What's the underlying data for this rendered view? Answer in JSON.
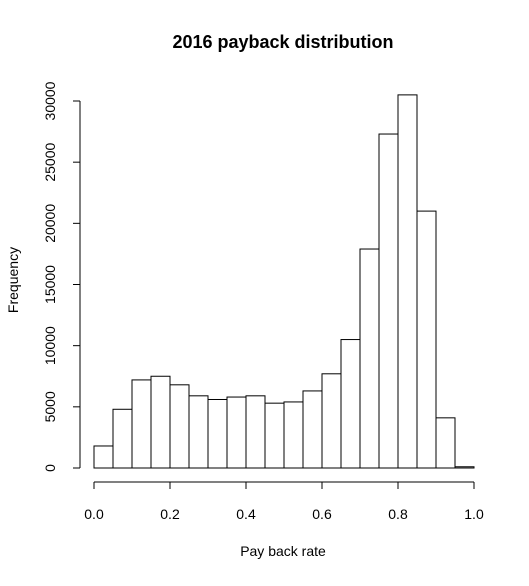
{
  "chart_data": {
    "type": "bar",
    "title": "2016 payback distribution",
    "xlabel": "Pay back rate",
    "ylabel": "Frequency",
    "xlim": [
      0.0,
      1.0
    ],
    "ylim": [
      0,
      30000
    ],
    "x_ticks": [
      "0.0",
      "0.2",
      "0.4",
      "0.6",
      "0.8",
      "1.0"
    ],
    "y_ticks": [
      "0",
      "5000",
      "10000",
      "15000",
      "20000",
      "25000",
      "30000"
    ],
    "bin_width": 0.05,
    "bins": [
      {
        "x0": 0.0,
        "x1": 0.05,
        "value": 1800
      },
      {
        "x0": 0.05,
        "x1": 0.1,
        "value": 4800
      },
      {
        "x0": 0.1,
        "x1": 0.15,
        "value": 7200
      },
      {
        "x0": 0.15,
        "x1": 0.2,
        "value": 7500
      },
      {
        "x0": 0.2,
        "x1": 0.25,
        "value": 6800
      },
      {
        "x0": 0.25,
        "x1": 0.3,
        "value": 5900
      },
      {
        "x0": 0.3,
        "x1": 0.35,
        "value": 5600
      },
      {
        "x0": 0.35,
        "x1": 0.4,
        "value": 5800
      },
      {
        "x0": 0.4,
        "x1": 0.45,
        "value": 5900
      },
      {
        "x0": 0.45,
        "x1": 0.5,
        "value": 5300
      },
      {
        "x0": 0.5,
        "x1": 0.55,
        "value": 5400
      },
      {
        "x0": 0.55,
        "x1": 0.6,
        "value": 6300
      },
      {
        "x0": 0.6,
        "x1": 0.65,
        "value": 7700
      },
      {
        "x0": 0.65,
        "x1": 0.7,
        "value": 10500
      },
      {
        "x0": 0.7,
        "x1": 0.75,
        "value": 17900
      },
      {
        "x0": 0.75,
        "x1": 0.8,
        "value": 27300
      },
      {
        "x0": 0.8,
        "x1": 0.85,
        "value": 30500
      },
      {
        "x0": 0.85,
        "x1": 0.9,
        "value": 21000
      },
      {
        "x0": 0.9,
        "x1": 0.95,
        "value": 4100
      },
      {
        "x0": 0.95,
        "x1": 1.0,
        "value": 100
      }
    ],
    "grid": false,
    "legend": "none",
    "bar_fill": "#ffffff",
    "bar_stroke": "#000000"
  }
}
